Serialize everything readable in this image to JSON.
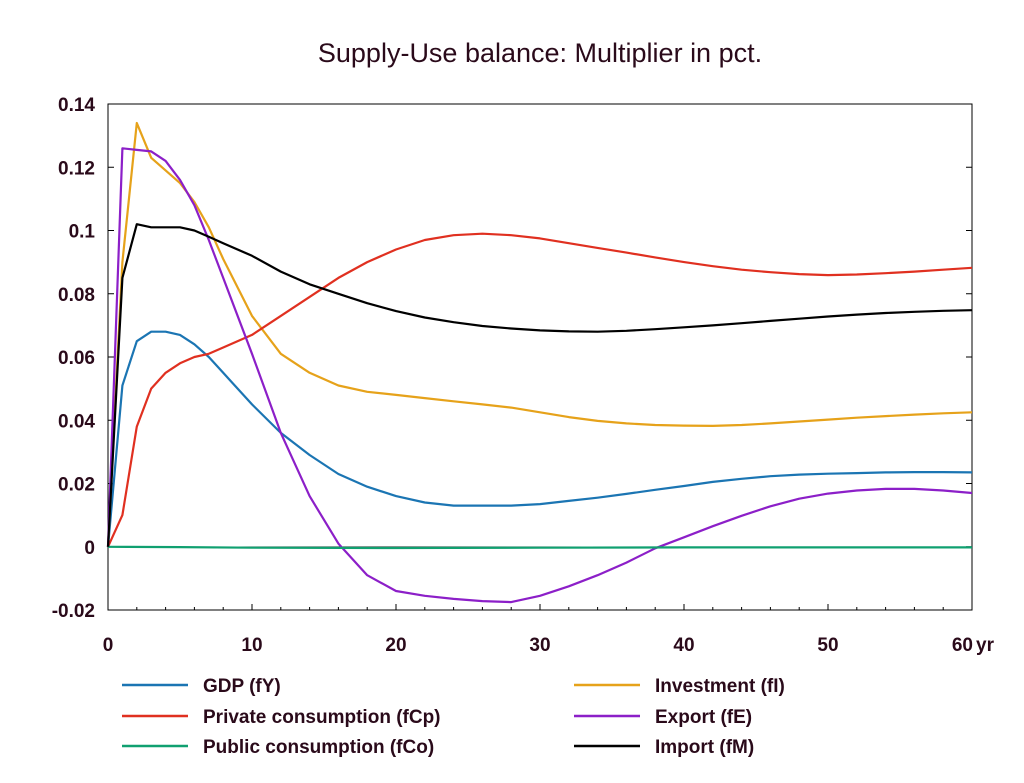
{
  "chart_data": {
    "type": "line",
    "title": "Supply-Use balance: Multiplier in pct.",
    "x_unit_label": "yr",
    "xlim": [
      0,
      60
    ],
    "ylim": [
      -0.02,
      0.14
    ],
    "x_ticks": [
      {
        "value": 0,
        "label": "0"
      },
      {
        "value": 10,
        "label": "10"
      },
      {
        "value": 20,
        "label": "20"
      },
      {
        "value": 30,
        "label": "30"
      },
      {
        "value": 40,
        "label": "40"
      },
      {
        "value": 50,
        "label": "50"
      },
      {
        "value": 60,
        "label": "60"
      }
    ],
    "y_ticks": [
      {
        "value": 0.14,
        "label": "0.14"
      },
      {
        "value": 0.12,
        "label": "0.12"
      },
      {
        "value": 0.1,
        "label": "0.1"
      },
      {
        "value": 0.08,
        "label": "0.08"
      },
      {
        "value": 0.06,
        "label": "0.06"
      },
      {
        "value": 0.04,
        "label": "0.04"
      },
      {
        "value": 0.02,
        "label": "0.02"
      },
      {
        "value": 0,
        "label": "0"
      },
      {
        "value": -0.02,
        "label": "-0.02"
      }
    ],
    "grid": false,
    "legend_position": "bottom, two columns",
    "series": [
      {
        "name": "GDP (fY)",
        "color": "#1b75b3",
        "points": [
          [
            0,
            0
          ],
          [
            1,
            0.051
          ],
          [
            2,
            0.065
          ],
          [
            3,
            0.068
          ],
          [
            4,
            0.068
          ],
          [
            5,
            0.067
          ],
          [
            6,
            0.064
          ],
          [
            7,
            0.06
          ],
          [
            8,
            0.055
          ],
          [
            10,
            0.045
          ],
          [
            12,
            0.036
          ],
          [
            14,
            0.029
          ],
          [
            16,
            0.023
          ],
          [
            18,
            0.019
          ],
          [
            20,
            0.016
          ],
          [
            22,
            0.014
          ],
          [
            24,
            0.013
          ],
          [
            26,
            0.013
          ],
          [
            28,
            0.013
          ],
          [
            30,
            0.0135
          ],
          [
            32,
            0.0145
          ],
          [
            34,
            0.0155
          ],
          [
            36,
            0.0167
          ],
          [
            38,
            0.018
          ],
          [
            40,
            0.0192
          ],
          [
            42,
            0.0205
          ],
          [
            44,
            0.0215
          ],
          [
            46,
            0.0223
          ],
          [
            48,
            0.0228
          ],
          [
            50,
            0.0231
          ],
          [
            52,
            0.0233
          ],
          [
            54,
            0.0235
          ],
          [
            56,
            0.0236
          ],
          [
            58,
            0.0236
          ],
          [
            60,
            0.0235
          ]
        ]
      },
      {
        "name": "Investment (fI)",
        "color": "#e6a21a",
        "points": [
          [
            0,
            0
          ],
          [
            1,
            0.09
          ],
          [
            2,
            0.134
          ],
          [
            3,
            0.123
          ],
          [
            4,
            0.119
          ],
          [
            5,
            0.115
          ],
          [
            6,
            0.109
          ],
          [
            7,
            0.101
          ],
          [
            8,
            0.091
          ],
          [
            10,
            0.073
          ],
          [
            12,
            0.061
          ],
          [
            14,
            0.055
          ],
          [
            16,
            0.051
          ],
          [
            18,
            0.049
          ],
          [
            20,
            0.048
          ],
          [
            22,
            0.047
          ],
          [
            24,
            0.046
          ],
          [
            26,
            0.045
          ],
          [
            28,
            0.044
          ],
          [
            30,
            0.0425
          ],
          [
            32,
            0.041
          ],
          [
            34,
            0.0398
          ],
          [
            36,
            0.039
          ],
          [
            38,
            0.0385
          ],
          [
            40,
            0.0383
          ],
          [
            42,
            0.0382
          ],
          [
            44,
            0.0385
          ],
          [
            46,
            0.039
          ],
          [
            48,
            0.0396
          ],
          [
            50,
            0.0402
          ],
          [
            52,
            0.0408
          ],
          [
            54,
            0.0413
          ],
          [
            56,
            0.0418
          ],
          [
            58,
            0.0422
          ],
          [
            60,
            0.0425
          ]
        ]
      },
      {
        "name": "Private consumption (fCp)",
        "color": "#e03020",
        "points": [
          [
            0,
            0
          ],
          [
            1,
            0.01
          ],
          [
            2,
            0.038
          ],
          [
            3,
            0.05
          ],
          [
            4,
            0.055
          ],
          [
            5,
            0.058
          ],
          [
            6,
            0.06
          ],
          [
            7,
            0.061
          ],
          [
            8,
            0.063
          ],
          [
            10,
            0.067
          ],
          [
            12,
            0.073
          ],
          [
            14,
            0.079
          ],
          [
            16,
            0.085
          ],
          [
            18,
            0.09
          ],
          [
            20,
            0.094
          ],
          [
            22,
            0.097
          ],
          [
            24,
            0.0985
          ],
          [
            26,
            0.099
          ],
          [
            28,
            0.0985
          ],
          [
            30,
            0.0975
          ],
          [
            32,
            0.096
          ],
          [
            34,
            0.0945
          ],
          [
            36,
            0.093
          ],
          [
            38,
            0.0915
          ],
          [
            40,
            0.09
          ],
          [
            42,
            0.0887
          ],
          [
            44,
            0.0876
          ],
          [
            46,
            0.0868
          ],
          [
            48,
            0.0862
          ],
          [
            50,
            0.0859
          ],
          [
            52,
            0.0861
          ],
          [
            54,
            0.0865
          ],
          [
            56,
            0.087
          ],
          [
            58,
            0.0876
          ],
          [
            60,
            0.0882
          ]
        ]
      },
      {
        "name": "Export (fE)",
        "color": "#8c1fc8",
        "points": [
          [
            0,
            0
          ],
          [
            1,
            0.126
          ],
          [
            2,
            0.1255
          ],
          [
            3,
            0.125
          ],
          [
            4,
            0.122
          ],
          [
            5,
            0.116
          ],
          [
            6,
            0.108
          ],
          [
            7,
            0.097
          ],
          [
            8,
            0.085
          ],
          [
            10,
            0.061
          ],
          [
            12,
            0.036
          ],
          [
            14,
            0.016
          ],
          [
            16,
            0.001
          ],
          [
            18,
            -0.009
          ],
          [
            20,
            -0.014
          ],
          [
            22,
            -0.0155
          ],
          [
            24,
            -0.0165
          ],
          [
            26,
            -0.0172
          ],
          [
            28,
            -0.0175
          ],
          [
            30,
            -0.0155
          ],
          [
            32,
            -0.0125
          ],
          [
            34,
            -0.009
          ],
          [
            36,
            -0.005
          ],
          [
            38,
            -0.0005
          ],
          [
            40,
            0.003
          ],
          [
            42,
            0.0065
          ],
          [
            44,
            0.0098
          ],
          [
            46,
            0.0128
          ],
          [
            48,
            0.0152
          ],
          [
            50,
            0.0168
          ],
          [
            52,
            0.0178
          ],
          [
            54,
            0.0183
          ],
          [
            56,
            0.0183
          ],
          [
            58,
            0.0178
          ],
          [
            60,
            0.017
          ]
        ]
      },
      {
        "name": "Public consumption (fCo)",
        "color": "#10a070",
        "points": [
          [
            0,
            0
          ],
          [
            5,
            -0.0001
          ],
          [
            10,
            -0.0003
          ],
          [
            20,
            -0.0004
          ],
          [
            30,
            -0.0003
          ],
          [
            40,
            -0.0002
          ],
          [
            50,
            -0.0002
          ],
          [
            60,
            -0.0002
          ]
        ]
      },
      {
        "name": "Import (fM)",
        "color": "#000000",
        "points": [
          [
            0,
            0
          ],
          [
            1,
            0.085
          ],
          [
            2,
            0.102
          ],
          [
            3,
            0.101
          ],
          [
            4,
            0.101
          ],
          [
            5,
            0.101
          ],
          [
            6,
            0.1
          ],
          [
            7,
            0.098
          ],
          [
            8,
            0.096
          ],
          [
            10,
            0.092
          ],
          [
            12,
            0.087
          ],
          [
            14,
            0.083
          ],
          [
            16,
            0.08
          ],
          [
            18,
            0.077
          ],
          [
            20,
            0.0745
          ],
          [
            22,
            0.0725
          ],
          [
            24,
            0.071
          ],
          [
            26,
            0.0698
          ],
          [
            28,
            0.069
          ],
          [
            30,
            0.0684
          ],
          [
            32,
            0.0681
          ],
          [
            34,
            0.068
          ],
          [
            36,
            0.0683
          ],
          [
            38,
            0.0688
          ],
          [
            40,
            0.0694
          ],
          [
            42,
            0.07
          ],
          [
            44,
            0.0707
          ],
          [
            46,
            0.0714
          ],
          [
            48,
            0.0721
          ],
          [
            50,
            0.0728
          ],
          [
            52,
            0.0734
          ],
          [
            54,
            0.0739
          ],
          [
            56,
            0.0743
          ],
          [
            58,
            0.0746
          ],
          [
            60,
            0.0748
          ]
        ]
      }
    ],
    "legend": [
      {
        "series": "GDP (fY)",
        "color": "#1b75b3"
      },
      {
        "series": "Private consumption (fCp)",
        "color": "#e03020"
      },
      {
        "series": "Public consumption (fCo)",
        "color": "#10a070"
      },
      {
        "series": "Investment (fI)",
        "color": "#e6a21a"
      },
      {
        "series": "Export (fE)",
        "color": "#8c1fc8"
      },
      {
        "series": "Import (fM)",
        "color": "#000000"
      }
    ]
  }
}
